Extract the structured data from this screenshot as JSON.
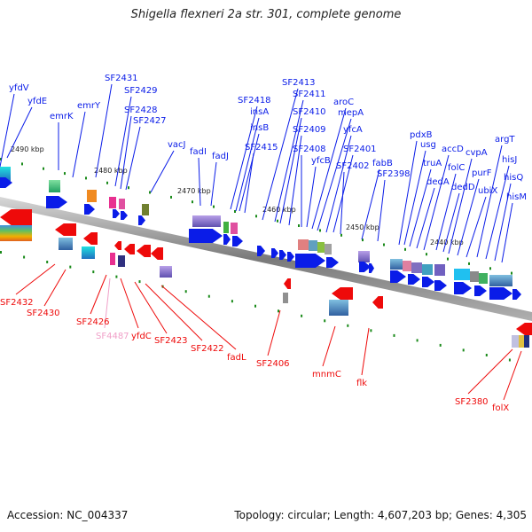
{
  "title": "Shigella flexneri 2a str. 301, complete genome",
  "footer": {
    "accession": "Accession: NC_004337",
    "stats": "Topology: circular; Length: 4,607,203 bp; Genes: 4,305"
  },
  "colors": {
    "forward": "#0a1ce8",
    "reverse": "#ee0a0a",
    "pseudo": "#f0a0c8",
    "ruler": "#7a7a7a",
    "tick": "#1a8a1a"
  },
  "ruler_ticks": [
    "2490 kbp",
    "2480 kbp",
    "2470 kbp",
    "2460 kbp",
    "2450 kbp",
    "2440 kbp"
  ],
  "forward_genes": [
    "yfdV",
    "yfdE",
    "emrK",
    "emrY",
    "SF2431",
    "SF2429",
    "SF2428",
    "SF2427",
    "vacJ",
    "fadI",
    "fadJ",
    "SF2418",
    "insA",
    "insB",
    "SF2415",
    "SF2413",
    "SF2411",
    "SF2410",
    "SF2409",
    "SF2408",
    "yfcB",
    "aroC",
    "mepA",
    "yfcA",
    "SF2401",
    "SF2402",
    "fabB",
    "SF2398",
    "pdxB",
    "usg",
    "truA",
    "dedA",
    "accD",
    "folC",
    "dedD",
    "cvpA",
    "purF",
    "ubiX",
    "argT",
    "hisJ",
    "hisQ",
    "hisM"
  ],
  "reverse_genes": [
    "SF2432",
    "SF2430",
    "SF2426",
    "SF4487",
    "yfdC",
    "SF2423",
    "SF2422",
    "fadL",
    "SF2406",
    "mnmC",
    "flk",
    "SF2380",
    "folX"
  ]
}
